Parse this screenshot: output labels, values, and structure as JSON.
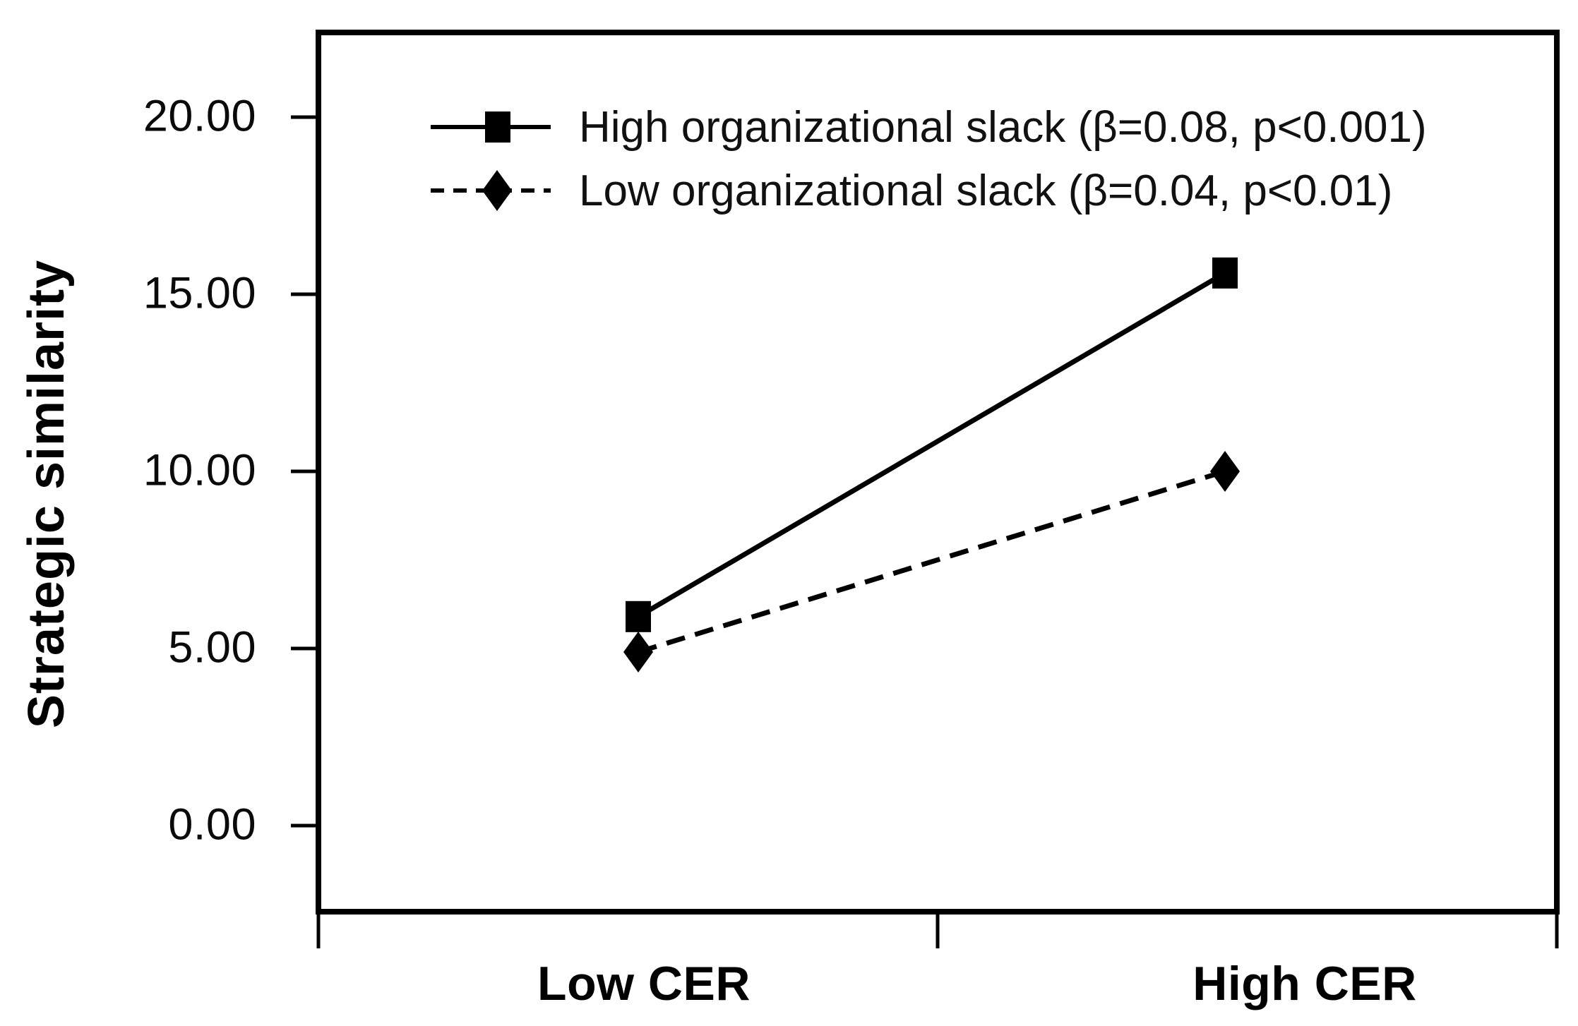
{
  "figure": {
    "background_color": "#ffffff",
    "ink_color": "#000000"
  },
  "y_axis": {
    "title": "Strategic similarity",
    "ticks": [
      {
        "label": "20.00",
        "value": 20
      },
      {
        "label": "15.00",
        "value": 15
      },
      {
        "label": "10.00",
        "value": 10
      },
      {
        "label": "5.00",
        "value": 5
      },
      {
        "label": "0.00",
        "value": 0
      }
    ]
  },
  "x_axis": {
    "labels": [
      "Low CER",
      "High CER"
    ]
  },
  "legend": {
    "items": [
      {
        "label": "High organizational slack (β=0.08, p<0.001)",
        "marker": "square",
        "line_style": "solid"
      },
      {
        "label": "Low organizational slack (β=0.04, p<0.01)",
        "marker": "diamond",
        "line_style": "dashed"
      }
    ]
  },
  "chart_data": {
    "type": "line",
    "categories": [
      "Low CER",
      "High CER"
    ],
    "series": [
      {
        "name": "High organizational slack (β=0.08, p<0.001)",
        "values": [
          5.9,
          15.6
        ],
        "marker": "square",
        "line_style": "solid",
        "color": "#000000"
      },
      {
        "name": "Low organizational slack (β=0.04, p<0.01)",
        "values": [
          4.9,
          10.0
        ],
        "marker": "diamond",
        "line_style": "dashed",
        "color": "#000000"
      }
    ],
    "title": "",
    "xlabel": "",
    "ylabel": "Strategic similarity",
    "ylim": [
      -2.5,
      22.5
    ],
    "yticks": [
      0,
      5,
      10,
      15,
      20
    ],
    "ytick_labels": [
      "0.00",
      "5.00",
      "10.00",
      "15.00",
      "20.00"
    ],
    "grid": false,
    "legend_position": "top-inside"
  }
}
